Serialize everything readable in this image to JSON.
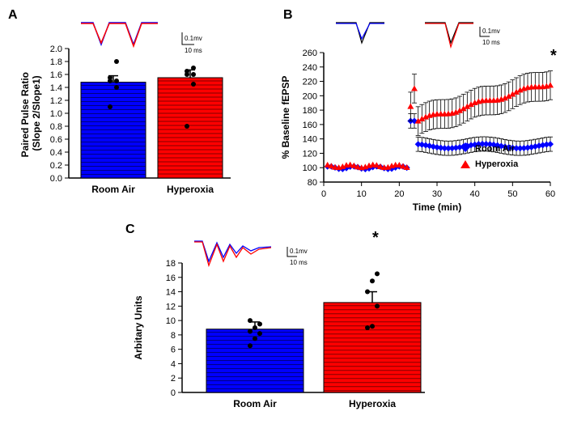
{
  "panelA": {
    "label": "A",
    "type": "bar",
    "ylabel": "Paired Pulse Ratio\n(Slope 2/Slope1)",
    "categories": [
      "Room Air",
      "Hyperoxia"
    ],
    "bar_values": [
      1.48,
      1.55
    ],
    "bar_errors": [
      0.1,
      0.12
    ],
    "bar_colors": [
      "#0000ff",
      "#ff0000"
    ],
    "points_roomair": [
      1.1,
      1.4,
      1.5,
      1.5,
      1.55,
      1.8
    ],
    "points_hyperoxia": [
      0.8,
      1.45,
      1.6,
      1.6,
      1.65,
      1.7
    ],
    "ylim": [
      0.0,
      2.0
    ],
    "ytick_step": 0.2,
    "scale_text_top": "0.1mv",
    "scale_text_bottom": "10 ms"
  },
  "panelB": {
    "label": "B",
    "type": "line",
    "ylabel": "% Baseline fEPSP",
    "xlabel": "Time (min)",
    "xlim": [
      0,
      60
    ],
    "xtick_step": 10,
    "ylim": [
      80,
      260
    ],
    "ytick_step": 20,
    "legend": [
      {
        "label": "Room Air",
        "color": "#0000ff",
        "marker": "diamond"
      },
      {
        "label": "Hyperoxia",
        "color": "#ff0000",
        "marker": "triangle"
      }
    ],
    "scale_text_top": "0.1mv",
    "scale_text_bottom": "10 ms",
    "star": "*"
  },
  "panelC": {
    "label": "C",
    "type": "bar",
    "ylabel": "Arbitary Units",
    "categories": [
      "Room Air",
      "Hyperoxia"
    ],
    "bar_values": [
      8.8,
      12.5
    ],
    "bar_errors": [
      1.0,
      1.5
    ],
    "bar_colors": [
      "#0000ff",
      "#ff0000"
    ],
    "points_roomair": [
      6.5,
      7.5,
      8.2,
      8.5,
      9.0,
      9.5,
      10.0
    ],
    "points_hyperoxia": [
      9.0,
      9.2,
      12.0,
      14.0,
      15.5,
      16.5
    ],
    "ylim": [
      0,
      18
    ],
    "ytick_step": 2,
    "scale_text_top": "0.1mv",
    "scale_text_bottom": "10 ms",
    "star": "*"
  }
}
